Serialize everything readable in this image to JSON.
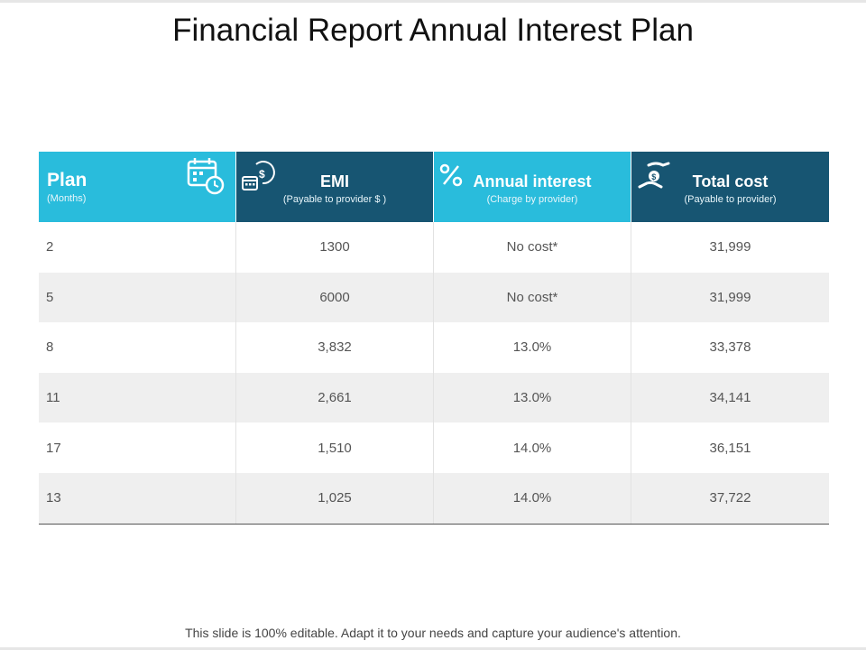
{
  "title": "Financial Report Annual Interest Plan",
  "headers": [
    {
      "title": "Plan",
      "subtitle": "(Months)",
      "icon": "calendar-clock-icon"
    },
    {
      "title": "EMI",
      "subtitle": "(Payable to provider $ )",
      "icon": "calendar-dollar-icon"
    },
    {
      "title": "Annual interest",
      "subtitle": "(Charge by provider)",
      "icon": "percent-icon"
    },
    {
      "title": "Total cost",
      "subtitle": "(Payable to provider)",
      "icon": "hand-money-icon"
    }
  ],
  "rows": [
    [
      "2",
      "1300",
      "No cost*",
      "31,999"
    ],
    [
      "5",
      "6000",
      "No cost*",
      "31,999"
    ],
    [
      "8",
      "3,832",
      "13.0%",
      "33,378"
    ],
    [
      "11",
      "2,661",
      "13.0%",
      "34,141"
    ],
    [
      "17",
      "1,510",
      "14.0%",
      "36,151"
    ],
    [
      "13",
      "1,025",
      "14.0%",
      "37,722"
    ]
  ],
  "footer": "This slide is 100% editable. Adapt it to your needs and capture your audience's attention.",
  "colors": {
    "header_light": "#29bcdc",
    "header_dark": "#175572",
    "row_alt": "#efefef"
  }
}
